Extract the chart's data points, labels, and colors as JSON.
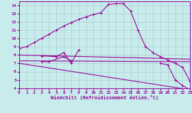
{
  "xlabel": "Windchill (Refroidissement éolien,°C)",
  "bg_color": "#c8ecec",
  "line_color": "#990099",
  "grid_color": "#aacccc",
  "xlim": [
    0,
    23
  ],
  "ylim": [
    4,
    14.5
  ],
  "xticks": [
    0,
    1,
    2,
    3,
    4,
    5,
    6,
    7,
    8,
    9,
    10,
    11,
    12,
    13,
    14,
    15,
    16,
    17,
    18,
    19,
    20,
    21,
    22,
    23
  ],
  "yticks": [
    4,
    5,
    6,
    7,
    8,
    9,
    10,
    11,
    12,
    13,
    14
  ],
  "series": [
    {
      "x": [
        0,
        1,
        2,
        3,
        4,
        5,
        6,
        7,
        8,
        9,
        10,
        11,
        12,
        13,
        14,
        15,
        16,
        17,
        18,
        19,
        20,
        21,
        22,
        23
      ],
      "y": [
        8.8,
        9.0,
        9.5,
        10.0,
        10.5,
        11.0,
        11.5,
        11.9,
        12.3,
        12.6,
        12.9,
        13.1,
        14.1,
        14.2,
        14.2,
        13.3,
        11.0,
        9.0,
        8.3,
        7.8,
        7.4,
        7.0,
        6.5,
        4.8
      ],
      "marker": true
    },
    {
      "x": [
        0,
        23
      ],
      "y": [
        8.0,
        7.5
      ],
      "marker": false
    },
    {
      "x": [
        0,
        23
      ],
      "y": [
        7.3,
        7.2
      ],
      "marker": false
    },
    {
      "x": [
        0,
        23
      ],
      "y": [
        7.0,
        3.8
      ],
      "marker": false
    },
    {
      "x": [
        3,
        5,
        6,
        7,
        8
      ],
      "y": [
        7.9,
        7.8,
        8.3,
        7.0,
        8.6
      ],
      "marker": true
    },
    {
      "x": [
        3,
        4,
        6,
        7
      ],
      "y": [
        7.2,
        7.2,
        7.8,
        7.3
      ],
      "marker": true
    },
    {
      "x": [
        19,
        20,
        21,
        22,
        23
      ],
      "y": [
        7.0,
        6.8,
        5.0,
        4.3,
        3.8
      ],
      "marker": true
    }
  ]
}
